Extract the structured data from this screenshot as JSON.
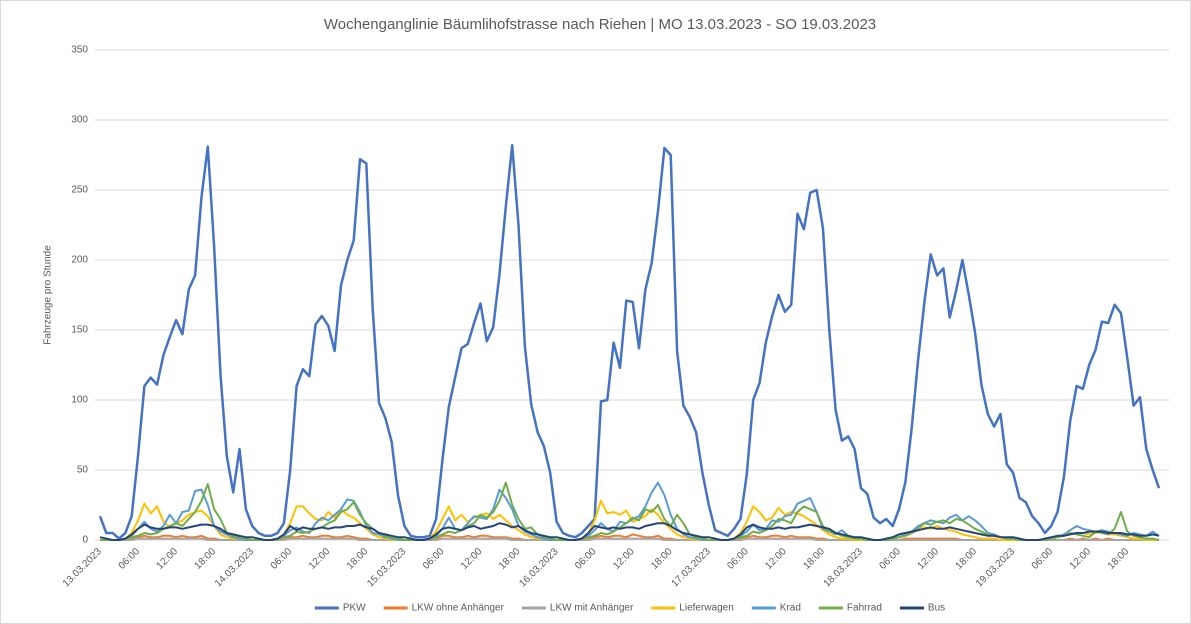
{
  "chart_data": {
    "type": "line",
    "title": "Wochenganglinie Bäumlihofstrasse nach Riehen | MO 13.03.2023 - SO 19.03.2023",
    "y_label": "Fahrzeuge pro Stunde",
    "ylim": [
      0,
      350
    ],
    "yticks": [
      0,
      50,
      100,
      150,
      200,
      250,
      300,
      350
    ],
    "grid": true,
    "legend": "bottom",
    "categories": [
      "13.03.2023",
      null,
      null,
      null,
      null,
      null,
      "06:00",
      null,
      null,
      null,
      null,
      null,
      "12:00",
      null,
      null,
      null,
      null,
      null,
      "18:00",
      null,
      null,
      null,
      null,
      null,
      "14.03.2023",
      null,
      null,
      null,
      null,
      null,
      "06:00",
      null,
      null,
      null,
      null,
      null,
      "12:00",
      null,
      null,
      null,
      null,
      null,
      "18:00",
      null,
      null,
      null,
      null,
      null,
      "15.03.2023",
      null,
      null,
      null,
      null,
      null,
      "06:00",
      null,
      null,
      null,
      null,
      null,
      "12:00",
      null,
      null,
      null,
      null,
      null,
      "18:00",
      null,
      null,
      null,
      null,
      null,
      "16.03.2023",
      null,
      null,
      null,
      null,
      null,
      "06:00",
      null,
      null,
      null,
      null,
      null,
      "12:00",
      null,
      null,
      null,
      null,
      null,
      "18:00",
      null,
      null,
      null,
      null,
      null,
      "17.03.2023",
      null,
      null,
      null,
      null,
      null,
      "06:00",
      null,
      null,
      null,
      null,
      null,
      "12:00",
      null,
      null,
      null,
      null,
      null,
      "18:00",
      null,
      null,
      null,
      null,
      null,
      "18.03.2023",
      null,
      null,
      null,
      null,
      null,
      "06:00",
      null,
      null,
      null,
      null,
      null,
      "12:00",
      null,
      null,
      null,
      null,
      null,
      "18:00",
      null,
      null,
      null,
      null,
      null,
      "19.03.2023",
      null,
      null,
      null,
      null,
      null,
      "06:00",
      null,
      null,
      null,
      null,
      null,
      "12:00",
      null,
      null,
      null,
      null,
      null,
      "18:00",
      null,
      null,
      null,
      null,
      null
    ],
    "series": [
      {
        "name": "PKW",
        "color": "#4472c4",
        "values": [
          17,
          5,
          5,
          1,
          5,
          17,
          60,
          110,
          116,
          111,
          132,
          145,
          157,
          147,
          179,
          189,
          245,
          281,
          210,
          118,
          60,
          34,
          65,
          22,
          10,
          5,
          3,
          3,
          5,
          12,
          50,
          110,
          122,
          117,
          154,
          160,
          153,
          135,
          182,
          200,
          214,
          272,
          269,
          165,
          98,
          87,
          70,
          32,
          10,
          3,
          2,
          2,
          3,
          15,
          57,
          95,
          116,
          137,
          140,
          155,
          169,
          142,
          152,
          190,
          238,
          282,
          225,
          138,
          97,
          77,
          67,
          48,
          13,
          5,
          3,
          2,
          5,
          10,
          15,
          99,
          100,
          141,
          123,
          171,
          170,
          137,
          179,
          198,
          235,
          280,
          275,
          135,
          96,
          88,
          77,
          48,
          25,
          7,
          5,
          3,
          8,
          15,
          47,
          100,
          112,
          141,
          160,
          175,
          163,
          168,
          233,
          222,
          248,
          250,
          223,
          150,
          93,
          71,
          74,
          65,
          37,
          33,
          16,
          12,
          15,
          10,
          22,
          41,
          80,
          128,
          170,
          204,
          189,
          194,
          159,
          178,
          200,
          175,
          148,
          111,
          90,
          81,
          90,
          54,
          48,
          30,
          27,
          17,
          12,
          5,
          10,
          20,
          45,
          85,
          110,
          108,
          125,
          136,
          156,
          155,
          168,
          162,
          130,
          96,
          102,
          65,
          50,
          37
        ]
      },
      {
        "name": "LKW ohne Anhänger",
        "color": "#ed7d31",
        "values": [
          0,
          0,
          0,
          0,
          0,
          1,
          2,
          3,
          2,
          2,
          3,
          3,
          2,
          3,
          2,
          2,
          3,
          1,
          1,
          0,
          0,
          0,
          0,
          0,
          0,
          0,
          0,
          0,
          0,
          1,
          2,
          2,
          3,
          2,
          2,
          3,
          3,
          2,
          2,
          3,
          2,
          1,
          1,
          0,
          0,
          0,
          0,
          0,
          0,
          0,
          0,
          0,
          0,
          1,
          3,
          3,
          2,
          2,
          3,
          2,
          3,
          3,
          2,
          2,
          2,
          1,
          1,
          0,
          0,
          0,
          0,
          0,
          0,
          0,
          0,
          0,
          0,
          1,
          2,
          3,
          2,
          3,
          3,
          2,
          4,
          3,
          2,
          2,
          3,
          1,
          1,
          0,
          0,
          0,
          0,
          0,
          0,
          0,
          0,
          0,
          0,
          1,
          2,
          3,
          2,
          2,
          3,
          3,
          2,
          3,
          2,
          2,
          2,
          1,
          1,
          0,
          0,
          0,
          0,
          0,
          0,
          0,
          0,
          0,
          0,
          0,
          0,
          1,
          1,
          1,
          1,
          1,
          1,
          1,
          1,
          1,
          0,
          0,
          0,
          0,
          0,
          0,
          0,
          0,
          0,
          0,
          0,
          0,
          0,
          0,
          0,
          0,
          0,
          1,
          0,
          1,
          0,
          1,
          0,
          1,
          0,
          0,
          0,
          0,
          0,
          0,
          0,
          0
        ]
      },
      {
        "name": "LKW mit Anhänger",
        "color": "#a5a5a5",
        "values": [
          0,
          0,
          0,
          0,
          0,
          0,
          1,
          1,
          1,
          1,
          1,
          1,
          1,
          1,
          1,
          1,
          1,
          0,
          0,
          0,
          0,
          0,
          0,
          0,
          0,
          0,
          0,
          0,
          0,
          0,
          1,
          1,
          1,
          1,
          1,
          1,
          1,
          1,
          1,
          1,
          1,
          0,
          0,
          0,
          0,
          0,
          0,
          0,
          0,
          0,
          0,
          0,
          0,
          0,
          1,
          1,
          1,
          1,
          1,
          1,
          1,
          1,
          1,
          1,
          1,
          0,
          0,
          0,
          0,
          0,
          0,
          0,
          0,
          0,
          0,
          0,
          0,
          0,
          1,
          1,
          1,
          1,
          1,
          1,
          1,
          1,
          1,
          1,
          1,
          0,
          0,
          0,
          0,
          0,
          0,
          0,
          0,
          0,
          0,
          0,
          0,
          0,
          1,
          1,
          1,
          1,
          1,
          1,
          1,
          1,
          1,
          1,
          1,
          0,
          0,
          0,
          0,
          0,
          0,
          0,
          0,
          0,
          0,
          0,
          0,
          0,
          0,
          0,
          0,
          0,
          0,
          0,
          0,
          0,
          0,
          0,
          0,
          0,
          0,
          0,
          0,
          0,
          0,
          0,
          0,
          0,
          0,
          0,
          0,
          0,
          0,
          0,
          0,
          0,
          0,
          0,
          0,
          0,
          0,
          0,
          0,
          0,
          0,
          0,
          0,
          0,
          0,
          0
        ]
      },
      {
        "name": "Lieferwagen",
        "color": "#ffc000",
        "values": [
          0,
          0,
          0,
          0,
          1,
          5,
          14,
          26,
          19,
          24,
          13,
          9,
          12,
          14,
          18,
          20,
          21,
          17,
          10,
          4,
          2,
          1,
          1,
          0,
          0,
          0,
          0,
          0,
          1,
          4,
          12,
          24,
          24,
          19,
          15,
          14,
          20,
          16,
          22,
          18,
          16,
          12,
          8,
          4,
          2,
          1,
          0,
          0,
          0,
          0,
          0,
          0,
          1,
          6,
          15,
          24,
          14,
          18,
          13,
          16,
          18,
          19,
          15,
          18,
          14,
          10,
          7,
          4,
          2,
          1,
          1,
          0,
          0,
          0,
          0,
          0,
          1,
          5,
          14,
          28,
          19,
          20,
          18,
          21,
          13,
          15,
          17,
          22,
          18,
          12,
          8,
          4,
          2,
          1,
          0,
          0,
          0,
          0,
          0,
          0,
          1,
          5,
          13,
          24,
          20,
          14,
          16,
          23,
          18,
          20,
          19,
          17,
          14,
          11,
          7,
          4,
          2,
          1,
          1,
          0,
          0,
          0,
          0,
          0,
          0,
          1,
          2,
          3,
          5,
          7,
          9,
          8,
          10,
          8,
          7,
          6,
          4,
          3,
          2,
          1,
          1,
          1,
          0,
          0,
          0,
          0,
          0,
          0,
          0,
          0,
          1,
          2,
          3,
          4,
          5,
          5,
          4,
          5,
          6,
          4,
          4,
          3,
          2,
          1,
          1,
          0,
          0,
          0
        ]
      },
      {
        "name": "Krad",
        "color": "#5b9bd5",
        "values": [
          0,
          0,
          0,
          0,
          1,
          3,
          8,
          13,
          8,
          6,
          10,
          18,
          12,
          20,
          21,
          35,
          36,
          25,
          10,
          6,
          4,
          2,
          1,
          0,
          0,
          0,
          0,
          0,
          1,
          3,
          7,
          9,
          6,
          5,
          12,
          16,
          14,
          18,
          22,
          29,
          28,
          20,
          10,
          5,
          4,
          2,
          1,
          0,
          0,
          0,
          0,
          0,
          1,
          3,
          8,
          16,
          8,
          7,
          12,
          17,
          16,
          15,
          22,
          36,
          30,
          22,
          10,
          6,
          4,
          2,
          1,
          0,
          0,
          0,
          0,
          0,
          1,
          3,
          7,
          12,
          8,
          6,
          13,
          12,
          15,
          17,
          24,
          34,
          41,
          32,
          18,
          8,
          4,
          2,
          1,
          0,
          0,
          0,
          0,
          0,
          1,
          3,
          6,
          11,
          7,
          8,
          14,
          13,
          17,
          18,
          26,
          28,
          30,
          20,
          8,
          6,
          4,
          7,
          3,
          1,
          1,
          0,
          0,
          0,
          0,
          1,
          2,
          4,
          6,
          10,
          12,
          14,
          13,
          12,
          16,
          18,
          14,
          17,
          14,
          10,
          5,
          4,
          2,
          1,
          1,
          0,
          0,
          0,
          0,
          0,
          1,
          2,
          4,
          7,
          10,
          8,
          7,
          6,
          7,
          6,
          5,
          4,
          3,
          5,
          4,
          3,
          6,
          3
        ]
      },
      {
        "name": "Fahrrad",
        "color": "#70ad47",
        "values": [
          0,
          0,
          0,
          0,
          1,
          2,
          3,
          5,
          4,
          5,
          8,
          10,
          12,
          10,
          15,
          20,
          28,
          40,
          22,
          15,
          5,
          3,
          2,
          1,
          0,
          0,
          0,
          0,
          1,
          2,
          3,
          6,
          5,
          6,
          8,
          9,
          12,
          14,
          20,
          22,
          27,
          18,
          12,
          8,
          5,
          3,
          2,
          1,
          0,
          0,
          0,
          0,
          1,
          2,
          4,
          6,
          5,
          7,
          10,
          12,
          18,
          16,
          20,
          28,
          41,
          25,
          15,
          8,
          9,
          4,
          2,
          1,
          0,
          0,
          0,
          0,
          1,
          2,
          3,
          5,
          4,
          6,
          9,
          12,
          16,
          14,
          22,
          20,
          25,
          15,
          10,
          18,
          12,
          4,
          2,
          1,
          0,
          0,
          0,
          0,
          1,
          2,
          3,
          6,
          5,
          7,
          10,
          15,
          14,
          12,
          20,
          24,
          22,
          20,
          10,
          6,
          5,
          3,
          2,
          1,
          1,
          0,
          0,
          0,
          0,
          1,
          2,
          3,
          5,
          8,
          12,
          11,
          13,
          14,
          12,
          15,
          14,
          11,
          8,
          6,
          4,
          3,
          2,
          1,
          1,
          0,
          0,
          0,
          0,
          0,
          1,
          2,
          3,
          5,
          4,
          3,
          2,
          6,
          5,
          4,
          8,
          20,
          6,
          3,
          2,
          1,
          1,
          0
        ]
      },
      {
        "name": "Bus",
        "color": "#264478",
        "values": [
          2,
          1,
          0,
          0,
          1,
          4,
          8,
          11,
          9,
          8,
          8,
          9,
          9,
          8,
          9,
          10,
          11,
          11,
          10,
          8,
          5,
          4,
          3,
          2,
          2,
          1,
          0,
          0,
          1,
          4,
          10,
          7,
          9,
          8,
          8,
          9,
          8,
          9,
          9,
          10,
          10,
          11,
          9,
          8,
          5,
          4,
          3,
          2,
          2,
          1,
          0,
          0,
          1,
          4,
          8,
          9,
          8,
          7,
          9,
          10,
          8,
          9,
          10,
          12,
          11,
          9,
          10,
          7,
          5,
          4,
          3,
          2,
          2,
          1,
          0,
          0,
          1,
          5,
          10,
          9,
          8,
          9,
          8,
          9,
          9,
          8,
          10,
          11,
          12,
          12,
          10,
          7,
          5,
          4,
          3,
          2,
          2,
          1,
          0,
          0,
          1,
          4,
          9,
          11,
          9,
          8,
          8,
          9,
          8,
          9,
          9,
          10,
          11,
          10,
          9,
          8,
          5,
          4,
          3,
          2,
          2,
          1,
          0,
          0,
          1,
          2,
          4,
          5,
          6,
          7,
          8,
          9,
          8,
          8,
          9,
          8,
          7,
          6,
          5,
          4,
          3,
          3,
          2,
          2,
          2,
          1,
          0,
          0,
          0,
          1,
          2,
          3,
          3,
          4,
          5,
          5,
          6,
          6,
          6,
          5,
          5,
          5,
          4,
          4,
          3,
          3,
          4,
          3
        ]
      }
    ]
  }
}
